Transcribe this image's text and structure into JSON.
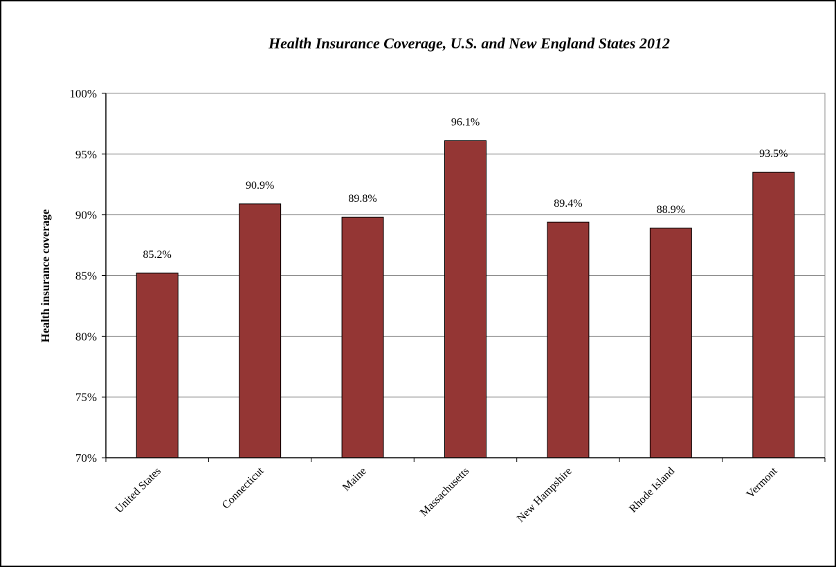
{
  "chart_data": {
    "type": "bar",
    "title": "Health Insurance Coverage, U.S. and New England States 2012",
    "xlabel": "",
    "ylabel": "Health  insurance coverage",
    "categories": [
      "United States",
      "Connecticut",
      "Maine",
      "Massachusetts",
      "New Hampshire",
      "Rhode Island",
      "Vermont"
    ],
    "values": [
      85.2,
      90.9,
      89.8,
      96.1,
      89.4,
      88.9,
      93.5
    ],
    "data_labels": [
      "85.2%",
      "90.9%",
      "89.8%",
      "96.1%",
      "89.4%",
      "88.9%",
      "93.5%"
    ],
    "ylim": [
      70,
      100
    ],
    "yticks": [
      70,
      75,
      80,
      85,
      90,
      95,
      100
    ],
    "ytick_labels": [
      "70%",
      "75%",
      "80%",
      "85%",
      "90%",
      "95%",
      "100%"
    ],
    "grid": true,
    "legend": "none",
    "bar_color": "#943634"
  }
}
